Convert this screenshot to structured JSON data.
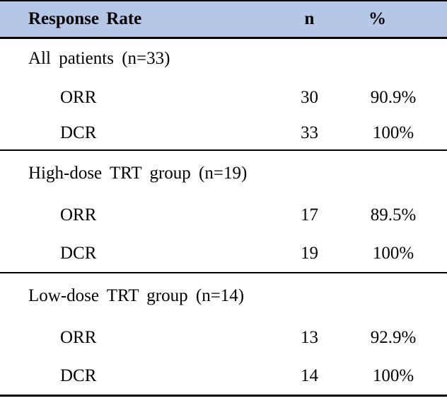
{
  "table": {
    "header": {
      "metric": "Response Rate",
      "n": "n",
      "pct": "%"
    },
    "sections": [
      {
        "group": "All patients (n=33)",
        "rows": [
          {
            "label": "ORR",
            "n": "30",
            "pct": "90.9%"
          },
          {
            "label": "DCR",
            "n": "33",
            "pct": "100%"
          }
        ]
      },
      {
        "group": "High-dose TRT group (n=19)",
        "rows": [
          {
            "label": "ORR",
            "n": "17",
            "pct": "89.5%"
          },
          {
            "label": "DCR",
            "n": "19",
            "pct": "100%"
          }
        ]
      },
      {
        "group": "Low-dose TRT group (n=14)",
        "rows": [
          {
            "label": "ORR",
            "n": "13",
            "pct": "92.9%"
          },
          {
            "label": "DCR",
            "n": "14",
            "pct": "100%"
          }
        ]
      }
    ]
  },
  "colors": {
    "header_bg": "#b4c7e7",
    "border": "#000000",
    "text": "#000000"
  }
}
